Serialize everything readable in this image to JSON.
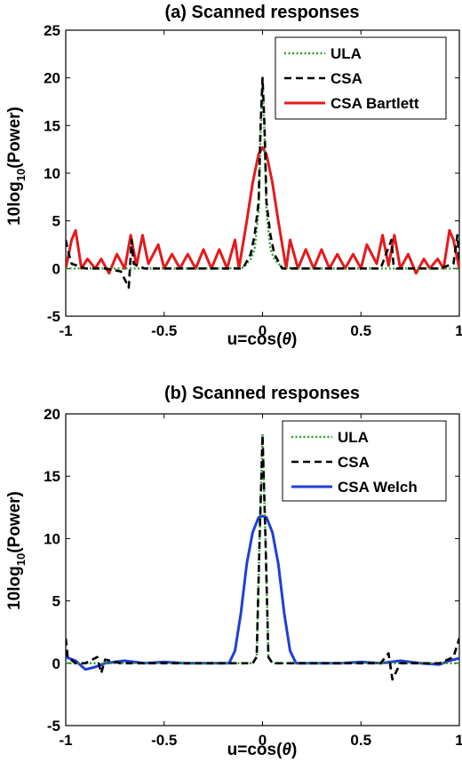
{
  "chart_data": [
    {
      "type": "line",
      "title": "(a) Scanned responses",
      "xlabel": "u=cos(θ)",
      "ylabel": "10log10(Power)",
      "xlim": [
        -1,
        1
      ],
      "ylim": [
        -5,
        25
      ],
      "xticks": [
        -1,
        -0.5,
        0,
        0.5,
        1
      ],
      "yticks": [
        -5,
        0,
        5,
        10,
        15,
        20,
        25
      ],
      "xtick_labels": [
        "-1",
        "-0.5",
        "0",
        "0.5",
        "1"
      ],
      "ytick_labels": [
        "-5",
        "0",
        "5",
        "10",
        "15",
        "20",
        "25"
      ],
      "legend_position": "top-right",
      "series": [
        {
          "name": "ULA",
          "color": "#2ca02c",
          "style": "dotted",
          "x": [
            -1,
            -0.8,
            -0.6,
            -0.4,
            -0.2,
            -0.1,
            -0.06,
            -0.04,
            -0.02,
            -0.01,
            0,
            0.01,
            0.02,
            0.04,
            0.06,
            0.1,
            0.2,
            0.4,
            0.6,
            0.8,
            1
          ],
          "y": [
            0,
            0,
            0,
            0,
            0,
            0.1,
            1,
            2,
            6,
            14,
            20,
            14,
            6,
            2,
            1,
            0.1,
            0,
            0,
            0,
            0,
            0
          ]
        },
        {
          "name": "CSA",
          "color": "#000000",
          "style": "dashed",
          "x": [
            -1,
            -0.99,
            -0.97,
            -0.9,
            -0.8,
            -0.72,
            -0.68,
            -0.665,
            -0.655,
            -0.6,
            -0.4,
            -0.2,
            -0.1,
            -0.06,
            -0.04,
            -0.02,
            -0.01,
            0,
            0.01,
            0.02,
            0.04,
            0.06,
            0.1,
            0.2,
            0.4,
            0.6,
            0.655,
            0.665,
            0.68,
            0.8,
            0.9,
            0.97,
            0.99,
            1
          ],
          "y": [
            3,
            2,
            0.5,
            0,
            0,
            -0.3,
            -2,
            3,
            0.5,
            0,
            0,
            0,
            0,
            1.5,
            3.5,
            7,
            15,
            20,
            15,
            7,
            3.5,
            1.5,
            0,
            0,
            0,
            0,
            3,
            0.5,
            0,
            0,
            0,
            0.5,
            3.5,
            1
          ]
        },
        {
          "name": "CSA Bartlett",
          "color": "#e41a1c",
          "style": "solid",
          "x": [
            -1,
            -0.97,
            -0.95,
            -0.92,
            -0.89,
            -0.85,
            -0.82,
            -0.78,
            -0.74,
            -0.7,
            -0.67,
            -0.64,
            -0.61,
            -0.58,
            -0.53,
            -0.5,
            -0.46,
            -0.42,
            -0.38,
            -0.34,
            -0.3,
            -0.26,
            -0.22,
            -0.18,
            -0.14,
            -0.12,
            -0.08,
            -0.05,
            -0.02,
            0,
            0.02,
            0.05,
            0.08,
            0.12,
            0.14,
            0.18,
            0.22,
            0.26,
            0.3,
            0.34,
            0.38,
            0.42,
            0.46,
            0.5,
            0.53,
            0.58,
            0.61,
            0.64,
            0.67,
            0.7,
            0.74,
            0.78,
            0.82,
            0.85,
            0.89,
            0.92,
            0.95,
            0.97,
            1
          ],
          "y": [
            0,
            3,
            4,
            0,
            1,
            0,
            1,
            -0.5,
            1.5,
            0,
            3.5,
            0.3,
            3.5,
            0.5,
            2.5,
            0,
            1.5,
            0,
            1.5,
            0,
            2,
            0,
            2,
            0,
            3,
            0,
            5,
            9,
            12,
            12.7,
            12,
            9,
            5,
            0,
            3,
            0,
            2,
            0,
            2,
            0,
            1.5,
            0,
            1.5,
            0,
            2.5,
            0.5,
            3.5,
            0.3,
            3.5,
            0,
            1.5,
            -0.5,
            1,
            0,
            1,
            0,
            4,
            3,
            0
          ]
        }
      ]
    },
    {
      "type": "line",
      "title": "(b) Scanned responses",
      "xlabel": "u=cos(θ)",
      "ylabel": "10log10(Power)",
      "xlim": [
        -1,
        1
      ],
      "ylim": [
        -5,
        20
      ],
      "xticks": [
        -1,
        -0.5,
        0,
        0.5,
        1
      ],
      "yticks": [
        -5,
        0,
        5,
        10,
        15,
        20
      ],
      "xtick_labels": [
        "-1",
        "-0.5",
        "0",
        "0.5",
        "1"
      ],
      "ytick_labels": [
        "-5",
        "0",
        "5",
        "10",
        "15",
        "20"
      ],
      "legend_position": "top-right",
      "series": [
        {
          "name": "ULA",
          "color": "#2ca02c",
          "style": "dotted",
          "x": [
            -1,
            -0.6,
            -0.2,
            -0.05,
            -0.03,
            -0.015,
            0,
            0.015,
            0.03,
            0.05,
            0.2,
            0.6,
            1
          ],
          "y": [
            0,
            0,
            0,
            0,
            0.5,
            10,
            18.3,
            10,
            0.5,
            0,
            0,
            0,
            0
          ],
          "dash_overlay": false
        },
        {
          "name": "CSA",
          "color": "#000000",
          "style": "dashed",
          "x": [
            -1,
            -0.99,
            -0.95,
            -0.9,
            -0.84,
            -0.82,
            -0.8,
            -0.72,
            -0.6,
            -0.4,
            -0.2,
            -0.05,
            -0.03,
            -0.015,
            0,
            0.015,
            0.03,
            0.05,
            0.2,
            0.4,
            0.6,
            0.64,
            0.66,
            0.7,
            0.8,
            0.9,
            0.97,
            0.99,
            1
          ],
          "y": [
            2,
            0.5,
            0,
            0,
            0.5,
            -0.8,
            0.3,
            0,
            0,
            0,
            0,
            0,
            0.5,
            10,
            18.3,
            10,
            0.5,
            0,
            0,
            0,
            0,
            0.8,
            -1.3,
            0,
            0,
            0,
            0.5,
            1.5,
            2
          ]
        },
        {
          "name": "CSA Welch",
          "color": "#1f3fd6",
          "style": "solid",
          "x": [
            -1,
            -0.95,
            -0.9,
            -0.85,
            -0.8,
            -0.7,
            -0.6,
            -0.5,
            -0.4,
            -0.3,
            -0.2,
            -0.17,
            -0.14,
            -0.11,
            -0.08,
            -0.05,
            -0.02,
            0,
            0.02,
            0.05,
            0.08,
            0.11,
            0.14,
            0.17,
            0.2,
            0.3,
            0.4,
            0.5,
            0.6,
            0.7,
            0.8,
            0.9,
            0.95,
            1
          ],
          "y": [
            0.5,
            0.2,
            -0.5,
            -0.3,
            0,
            0.2,
            0,
            0.1,
            0,
            0,
            0,
            0,
            1,
            4,
            8,
            10.5,
            11.7,
            11.8,
            11.7,
            10.5,
            8,
            4,
            1,
            0,
            0,
            0,
            0,
            0.1,
            0,
            0.2,
            0,
            -0.1,
            0.2,
            0.4
          ]
        }
      ]
    }
  ]
}
